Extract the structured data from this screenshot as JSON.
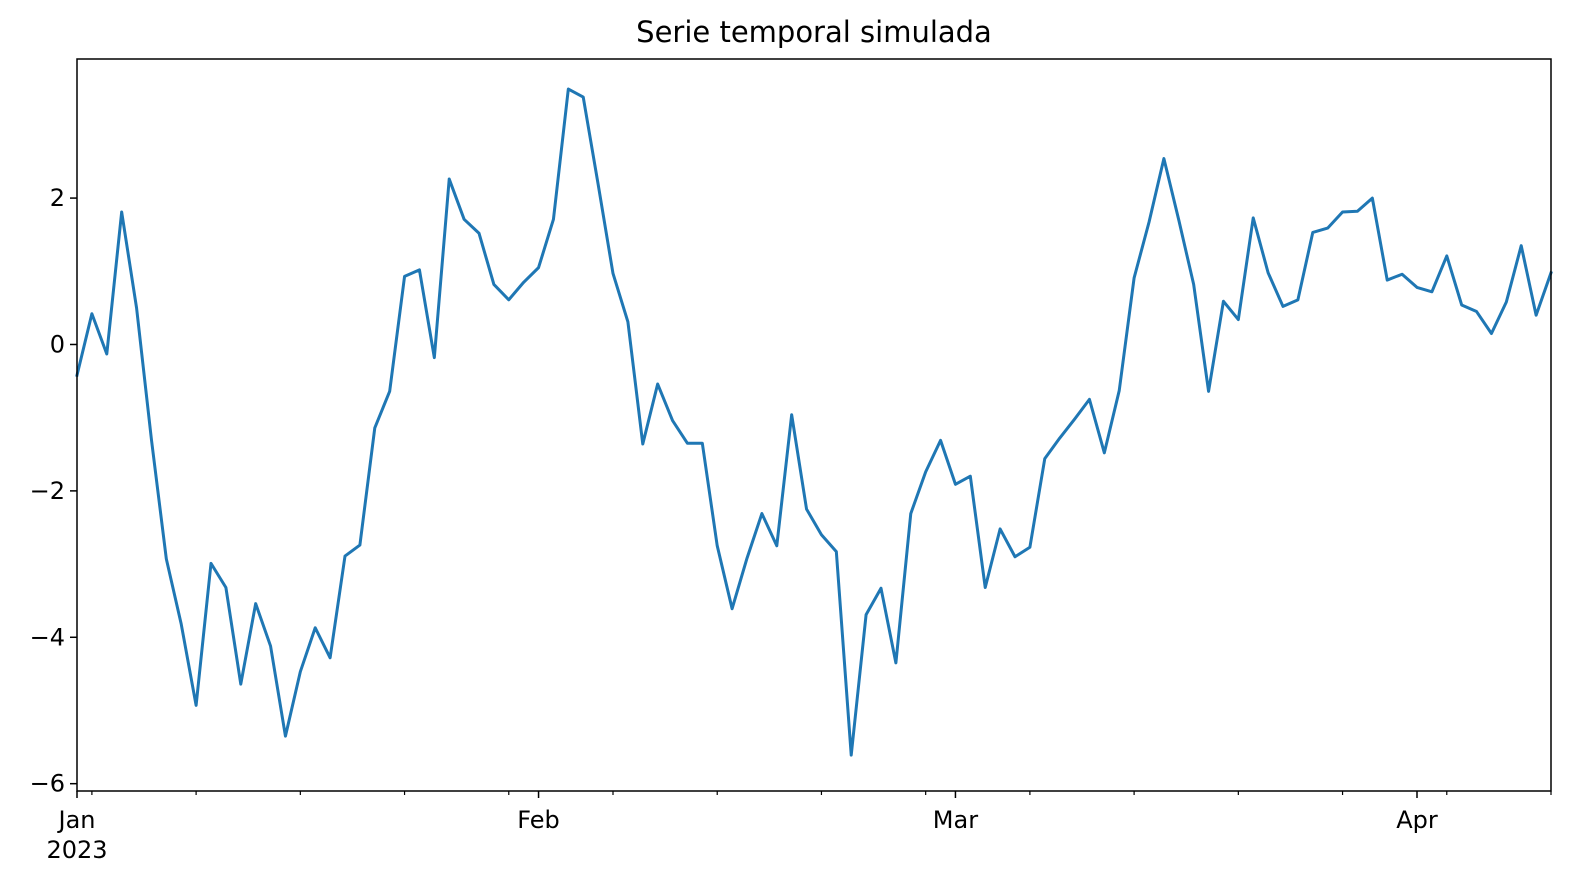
{
  "chart_data": {
    "type": "line",
    "title": "Serie temporal simulada",
    "xlabel": "",
    "ylabel": "",
    "x_start": "2023-01-01",
    "x_end": "2023-04-10",
    "x_frequency": "daily",
    "ylim": [
      -6.1,
      3.9
    ],
    "y_ticks": [
      {
        "value": 2,
        "label": "2"
      },
      {
        "value": 0,
        "label": "0"
      },
      {
        "value": -2,
        "label": "−2"
      },
      {
        "value": -4,
        "label": "−4"
      },
      {
        "value": -6,
        "label": "−6"
      }
    ],
    "x_major_ticks": [
      {
        "date": "2023-01-01",
        "label": "Jan",
        "sublabel": "2023"
      },
      {
        "date": "2023-02-01",
        "label": "Feb",
        "sublabel": ""
      },
      {
        "date": "2023-03-01",
        "label": "Mar",
        "sublabel": ""
      },
      {
        "date": "2023-04-01",
        "label": "Apr",
        "sublabel": ""
      }
    ],
    "x_minor_ticks": [
      "2023-01-02",
      "2023-01-09",
      "2023-01-16",
      "2023-01-23",
      "2023-01-30",
      "2023-02-06",
      "2023-02-13",
      "2023-02-20",
      "2023-02-27",
      "2023-03-06",
      "2023-03-13",
      "2023-03-20",
      "2023-03-27",
      "2023-04-03",
      "2023-04-10"
    ],
    "grid": false,
    "legend": "none",
    "series": [
      {
        "color": "#1f77b4",
        "values": [
          -0.42,
          0.42,
          -0.13,
          1.81,
          0.5,
          -1.3,
          -2.93,
          -3.82,
          -4.93,
          -2.99,
          -3.32,
          -4.64,
          -3.54,
          -4.12,
          -5.35,
          -4.47,
          -3.87,
          -4.28,
          -2.89,
          -2.74,
          -1.14,
          -0.64,
          0.93,
          1.02,
          -0.18,
          2.26,
          1.71,
          1.52,
          0.82,
          0.61,
          0.85,
          1.05,
          1.71,
          3.49,
          3.38,
          2.19,
          0.97,
          0.31,
          -1.36,
          -0.54,
          -1.04,
          -1.35,
          -1.35,
          -2.75,
          -3.61,
          -2.92,
          -2.31,
          -2.75,
          -0.96,
          -2.25,
          -2.6,
          -2.83,
          -5.61,
          -3.69,
          -3.33,
          -4.35,
          -2.31,
          -1.74,
          -1.31,
          -1.91,
          -1.8,
          -3.32,
          -2.52,
          -2.9,
          -2.77,
          -1.56,
          -1.28,
          -1.02,
          -0.75,
          -1.48,
          -0.63,
          0.91,
          1.67,
          2.54,
          1.7,
          0.82,
          -0.64,
          0.59,
          0.34,
          1.73,
          0.98,
          0.52,
          0.61,
          1.53,
          1.59,
          1.81,
          1.82,
          2.0,
          0.88,
          0.96,
          0.78,
          0.72,
          1.21,
          0.54,
          0.45,
          0.15,
          0.58,
          1.35,
          0.4,
          0.98
        ]
      }
    ]
  }
}
